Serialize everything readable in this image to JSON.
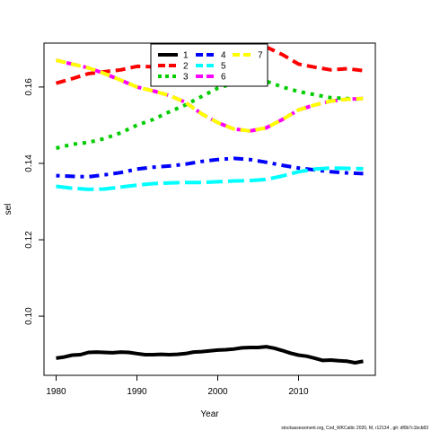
{
  "chart_data": {
    "type": "line",
    "xlabel": "Year",
    "ylabel": "sel",
    "xlim": [
      1978.5,
      2019.5
    ],
    "ylim": [
      0.0845,
      0.1715
    ],
    "x_ticks": [
      1980,
      1990,
      2000,
      2010
    ],
    "y_ticks": [
      0.1,
      0.12,
      0.14,
      0.16
    ],
    "y_tick_labels": [
      "0.10",
      "0.12",
      "0.14",
      "0.16"
    ],
    "legend_position": "top-center",
    "legend_columns": 3,
    "footer": "stockassessment.org,  Cod_WKCaltic  2020, M, r12134 ,  git:  df0b7c1bcb83",
    "series": [
      {
        "name": "1",
        "color": "#000000",
        "dash": "solid",
        "x": [
          1980,
          1981,
          1982,
          1983,
          1984,
          1985,
          1986,
          1987,
          1988,
          1989,
          1990,
          1991,
          1992,
          1993,
          1994,
          1995,
          1996,
          1997,
          1998,
          1999,
          2000,
          2001,
          2002,
          2003,
          2004,
          2005,
          2006,
          2007,
          2008,
          2009,
          2010,
          2011,
          2012,
          2013,
          2014,
          2015,
          2016,
          2017,
          2018
        ],
        "values": [
          0.089,
          0.0893,
          0.0898,
          0.0899,
          0.0905,
          0.0906,
          0.0905,
          0.0904,
          0.0906,
          0.0905,
          0.0902,
          0.0899,
          0.0899,
          0.09,
          0.0899,
          0.09,
          0.0902,
          0.0906,
          0.0907,
          0.0909,
          0.0911,
          0.0912,
          0.0914,
          0.0917,
          0.0918,
          0.0918,
          0.092,
          0.0916,
          0.091,
          0.0903,
          0.0898,
          0.0895,
          0.089,
          0.0884,
          0.0885,
          0.0883,
          0.0882,
          0.0878,
          0.0882
        ]
      },
      {
        "name": "2",
        "color": "#ff0000",
        "dash": "dashed",
        "x": [
          1980,
          1982,
          1984,
          1986,
          1988,
          1990,
          1992,
          1994,
          1996,
          1998,
          2000,
          2002,
          2004,
          2006,
          2008,
          2010,
          2012,
          2014,
          2016,
          2018
        ],
        "values": [
          0.161,
          0.1622,
          0.1635,
          0.164,
          0.1645,
          0.1654,
          0.1653,
          0.166,
          0.1668,
          0.168,
          0.169,
          0.17,
          0.1706,
          0.1705,
          0.1685,
          0.166,
          0.1652,
          0.1645,
          0.1648,
          0.1643
        ]
      },
      {
        "name": "3",
        "color": "#00cd00",
        "dash": "dotted",
        "x": [
          1980,
          1982,
          1984,
          1986,
          1988,
          1990,
          1992,
          1994,
          1996,
          1998,
          2000,
          2002,
          2004,
          2006,
          2008,
          2010,
          2012,
          2014,
          2016,
          2018
        ],
        "values": [
          0.144,
          0.145,
          0.1455,
          0.1465,
          0.148,
          0.15,
          0.1515,
          0.1535,
          0.1553,
          0.1575,
          0.1597,
          0.161,
          0.162,
          0.1615,
          0.16,
          0.1588,
          0.158,
          0.1572,
          0.157,
          0.1568
        ]
      },
      {
        "name": "4",
        "color": "#0000ff",
        "dash": "dotdash",
        "x": [
          1980,
          1982,
          1984,
          1986,
          1988,
          1990,
          1992,
          1994,
          1996,
          1998,
          2000,
          2002,
          2004,
          2006,
          2008,
          2010,
          2012,
          2014,
          2016,
          2018
        ],
        "values": [
          0.1368,
          0.1366,
          0.1365,
          0.137,
          0.1376,
          0.1385,
          0.139,
          0.1393,
          0.1398,
          0.1405,
          0.141,
          0.1413,
          0.141,
          0.1403,
          0.1395,
          0.1388,
          0.1383,
          0.1378,
          0.1375,
          0.1373
        ]
      },
      {
        "name": "5",
        "color": "#00ffff",
        "dash": "longdash",
        "x": [
          1980,
          1982,
          1984,
          1986,
          1988,
          1990,
          1992,
          1994,
          1996,
          1998,
          2000,
          2002,
          2004,
          2006,
          2008,
          2010,
          2012,
          2014,
          2016,
          2018
        ],
        "values": [
          0.134,
          0.1335,
          0.1332,
          0.1333,
          0.1338,
          0.1343,
          0.1347,
          0.1349,
          0.135,
          0.135,
          0.1352,
          0.1354,
          0.1355,
          0.1358,
          0.1367,
          0.1378,
          0.1385,
          0.1388,
          0.1387,
          0.1386
        ]
      },
      {
        "name": "6",
        "color": "#ff00ff",
        "dash": "twodash",
        "x": [
          1980,
          1982,
          1984,
          1986,
          1988,
          1990,
          1992,
          1994,
          1996,
          1998,
          2000,
          2002,
          2004,
          2006,
          2008,
          2010,
          2012,
          2014,
          2016,
          2018
        ],
        "values": [
          0.167,
          0.166,
          0.165,
          0.1635,
          0.1618,
          0.16,
          0.159,
          0.1578,
          0.156,
          0.153,
          0.1507,
          0.149,
          0.1485,
          0.1493,
          0.1515,
          0.154,
          0.1553,
          0.1563,
          0.1568,
          0.157
        ]
      },
      {
        "name": "7",
        "color": "#ffff00",
        "dash": "dashed",
        "x": [
          1980,
          1982,
          1984,
          1986,
          1988,
          1990,
          1992,
          1994,
          1996,
          1998,
          2000,
          2002,
          2004,
          2006,
          2008,
          2010,
          2012,
          2014,
          2016,
          2018
        ],
        "values": [
          0.167,
          0.166,
          0.165,
          0.1635,
          0.1618,
          0.16,
          0.159,
          0.1578,
          0.156,
          0.153,
          0.1507,
          0.149,
          0.1485,
          0.1493,
          0.1515,
          0.154,
          0.1553,
          0.1563,
          0.1568,
          0.157
        ]
      }
    ]
  }
}
